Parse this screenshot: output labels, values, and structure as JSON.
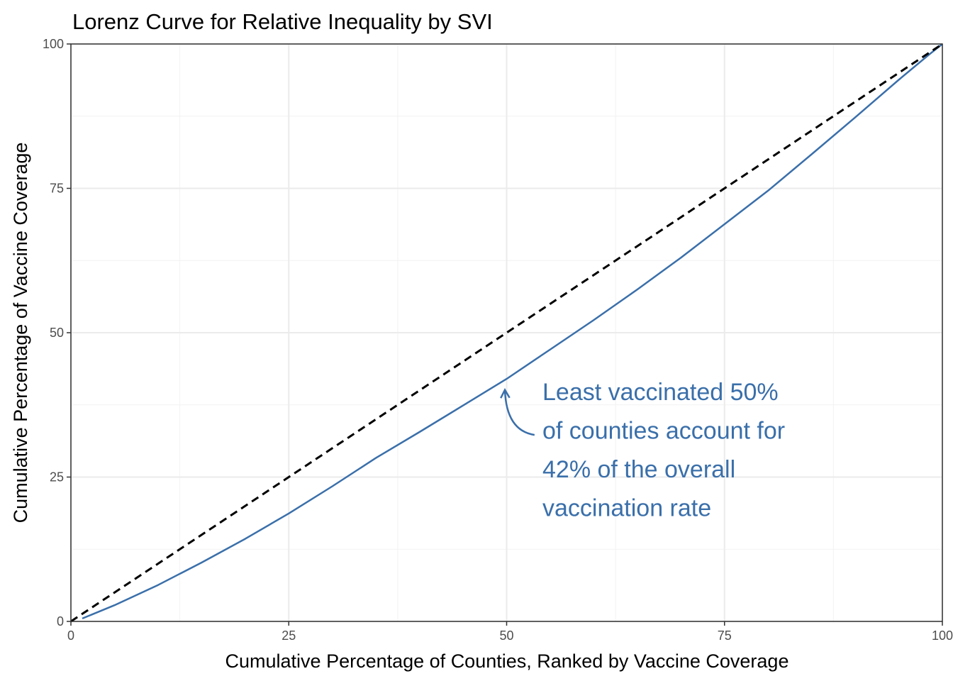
{
  "chart_data": {
    "type": "line",
    "title": "Lorenz Curve for Relative Inequality by SVI",
    "xlabel": "Cumulative Percentage of Counties, Ranked by Vaccine Coverage",
    "ylabel": "Cumulative Percentage of Vaccine Coverage",
    "xlim": [
      0,
      100
    ],
    "ylim": [
      0,
      100
    ],
    "x_ticks": [
      "0",
      "25",
      "50",
      "75",
      "100"
    ],
    "y_ticks": [
      "0",
      "25",
      "50",
      "75",
      "100"
    ],
    "grid": true,
    "theme": "white background, panel border, light gray major and minor gridlines",
    "colors": {
      "curve": "#3A6FAA",
      "equality_line": "#000000",
      "grid_major": "#EBEBEB",
      "grid_minor": "#F2F2F2",
      "panel_border": "#333333",
      "annotation": "#3A6FAA"
    },
    "series": [
      {
        "style": "solid",
        "color": "#3A6FAA",
        "x": [
          1.3,
          5,
          10,
          15,
          20,
          25,
          30,
          35,
          40,
          45,
          50,
          55,
          60,
          65,
          70,
          75,
          80,
          85,
          90,
          95,
          98.5,
          100
        ],
        "y": [
          0.5,
          2.8,
          6.3,
          10.2,
          14.3,
          18.7,
          23.4,
          28.3,
          32.8,
          37.4,
          42,
          47.1,
          52.2,
          57.5,
          63,
          68.8,
          74.6,
          80.9,
          87.3,
          93.8,
          98.2,
          100
        ]
      },
      {
        "style": "dashed",
        "color": "#000000",
        "x": [
          0,
          100
        ],
        "y": [
          0,
          100
        ]
      }
    ],
    "annotation": {
      "lines": [
        "Least vaccinated 50%",
        "of counties account for",
        "42% of the overall",
        "vaccination rate"
      ],
      "arrow_from": [
        53.2,
        32.3
      ],
      "arrow_to": [
        49.8,
        40.1
      ]
    }
  }
}
